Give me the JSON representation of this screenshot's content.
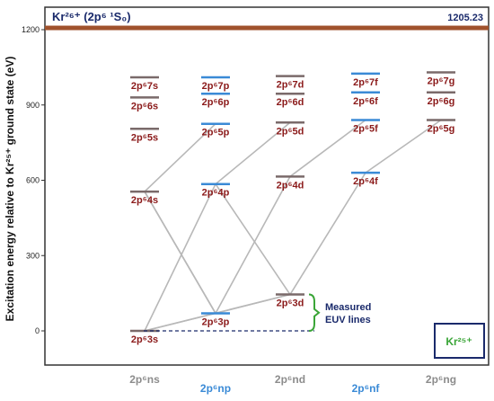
{
  "ylabel": "Excitation energy relative to Kr²⁵⁺ ground state (eV)",
  "yticks": [
    "0",
    "300",
    "600",
    "900",
    "1200"
  ],
  "ionization": {
    "label": "Kr²⁶⁺ (2p⁶ ¹S₀)",
    "value_label": "1205.23",
    "value": 1205.23
  },
  "columns": [
    {
      "label": "2p⁶ns",
      "color": "#8c8c8c"
    },
    {
      "label": "2p⁶np",
      "color": "#3a8ad6"
    },
    {
      "label": "2p⁶nd",
      "color": "#8c8c8c"
    },
    {
      "label": "2p⁶nf",
      "color": "#3a8ad6"
    },
    {
      "label": "2p⁶ng",
      "color": "#8c8c8c"
    }
  ],
  "levels": [
    {
      "id": "3s",
      "col": 0,
      "energy": 0,
      "label": "2p⁶3s"
    },
    {
      "id": "4s",
      "col": 0,
      "energy": 555,
      "label": "2p⁶4s"
    },
    {
      "id": "5s",
      "col": 0,
      "energy": 805,
      "label": "2p⁶5s"
    },
    {
      "id": "6s",
      "col": 0,
      "energy": 930,
      "label": "2p⁶6s"
    },
    {
      "id": "7s",
      "col": 0,
      "energy": 1010,
      "label": "2p⁶7s"
    },
    {
      "id": "3p",
      "col": 1,
      "energy": 70,
      "label": "2p⁶3p"
    },
    {
      "id": "4p",
      "col": 1,
      "energy": 585,
      "label": "2p⁶4p"
    },
    {
      "id": "5p",
      "col": 1,
      "energy": 825,
      "label": "2p⁶5p"
    },
    {
      "id": "6p",
      "col": 1,
      "energy": 945,
      "label": "2p⁶6p"
    },
    {
      "id": "7p",
      "col": 1,
      "energy": 1010,
      "label": "2p⁶7p"
    },
    {
      "id": "3d",
      "col": 2,
      "energy": 145,
      "label": "2p⁶3d"
    },
    {
      "id": "4d",
      "col": 2,
      "energy": 615,
      "label": "2p⁶4d"
    },
    {
      "id": "5d",
      "col": 2,
      "energy": 830,
      "label": "2p⁶5d"
    },
    {
      "id": "6d",
      "col": 2,
      "energy": 945,
      "label": "2p⁶6d"
    },
    {
      "id": "7d",
      "col": 2,
      "energy": 1015,
      "label": "2p⁶7d"
    },
    {
      "id": "4f",
      "col": 3,
      "energy": 630,
      "label": "2p⁶4f"
    },
    {
      "id": "5f",
      "col": 3,
      "energy": 840,
      "label": "2p⁶5f"
    },
    {
      "id": "6f",
      "col": 3,
      "energy": 950,
      "label": "2p⁶6f"
    },
    {
      "id": "7f",
      "col": 3,
      "energy": 1025,
      "label": "2p⁶7f"
    },
    {
      "id": "5g",
      "col": 4,
      "energy": 840,
      "label": "2p⁶5g"
    },
    {
      "id": "6g",
      "col": 4,
      "energy": 950,
      "label": "2p⁶6g"
    },
    {
      "id": "7g",
      "col": 4,
      "energy": 1030,
      "label": "2p⁶7g"
    }
  ],
  "transitions": [
    [
      "3s",
      "3p"
    ],
    [
      "3s",
      "3d"
    ],
    [
      "3p",
      "3d"
    ],
    [
      "4s",
      "3p"
    ],
    [
      "5p",
      "4s"
    ],
    [
      "4s",
      "3p"
    ],
    [
      "4p",
      "3s"
    ],
    [
      "5d",
      "4p"
    ],
    [
      "4p",
      "3d"
    ],
    [
      "4d",
      "3p"
    ],
    [
      "5f",
      "4d"
    ],
    [
      "4f",
      "3d"
    ],
    [
      "5g",
      "4f"
    ]
  ],
  "annotation": {
    "measured": "Measured\nEUV lines"
  },
  "ion_box": {
    "label": "Kr²⁵⁺"
  }
}
